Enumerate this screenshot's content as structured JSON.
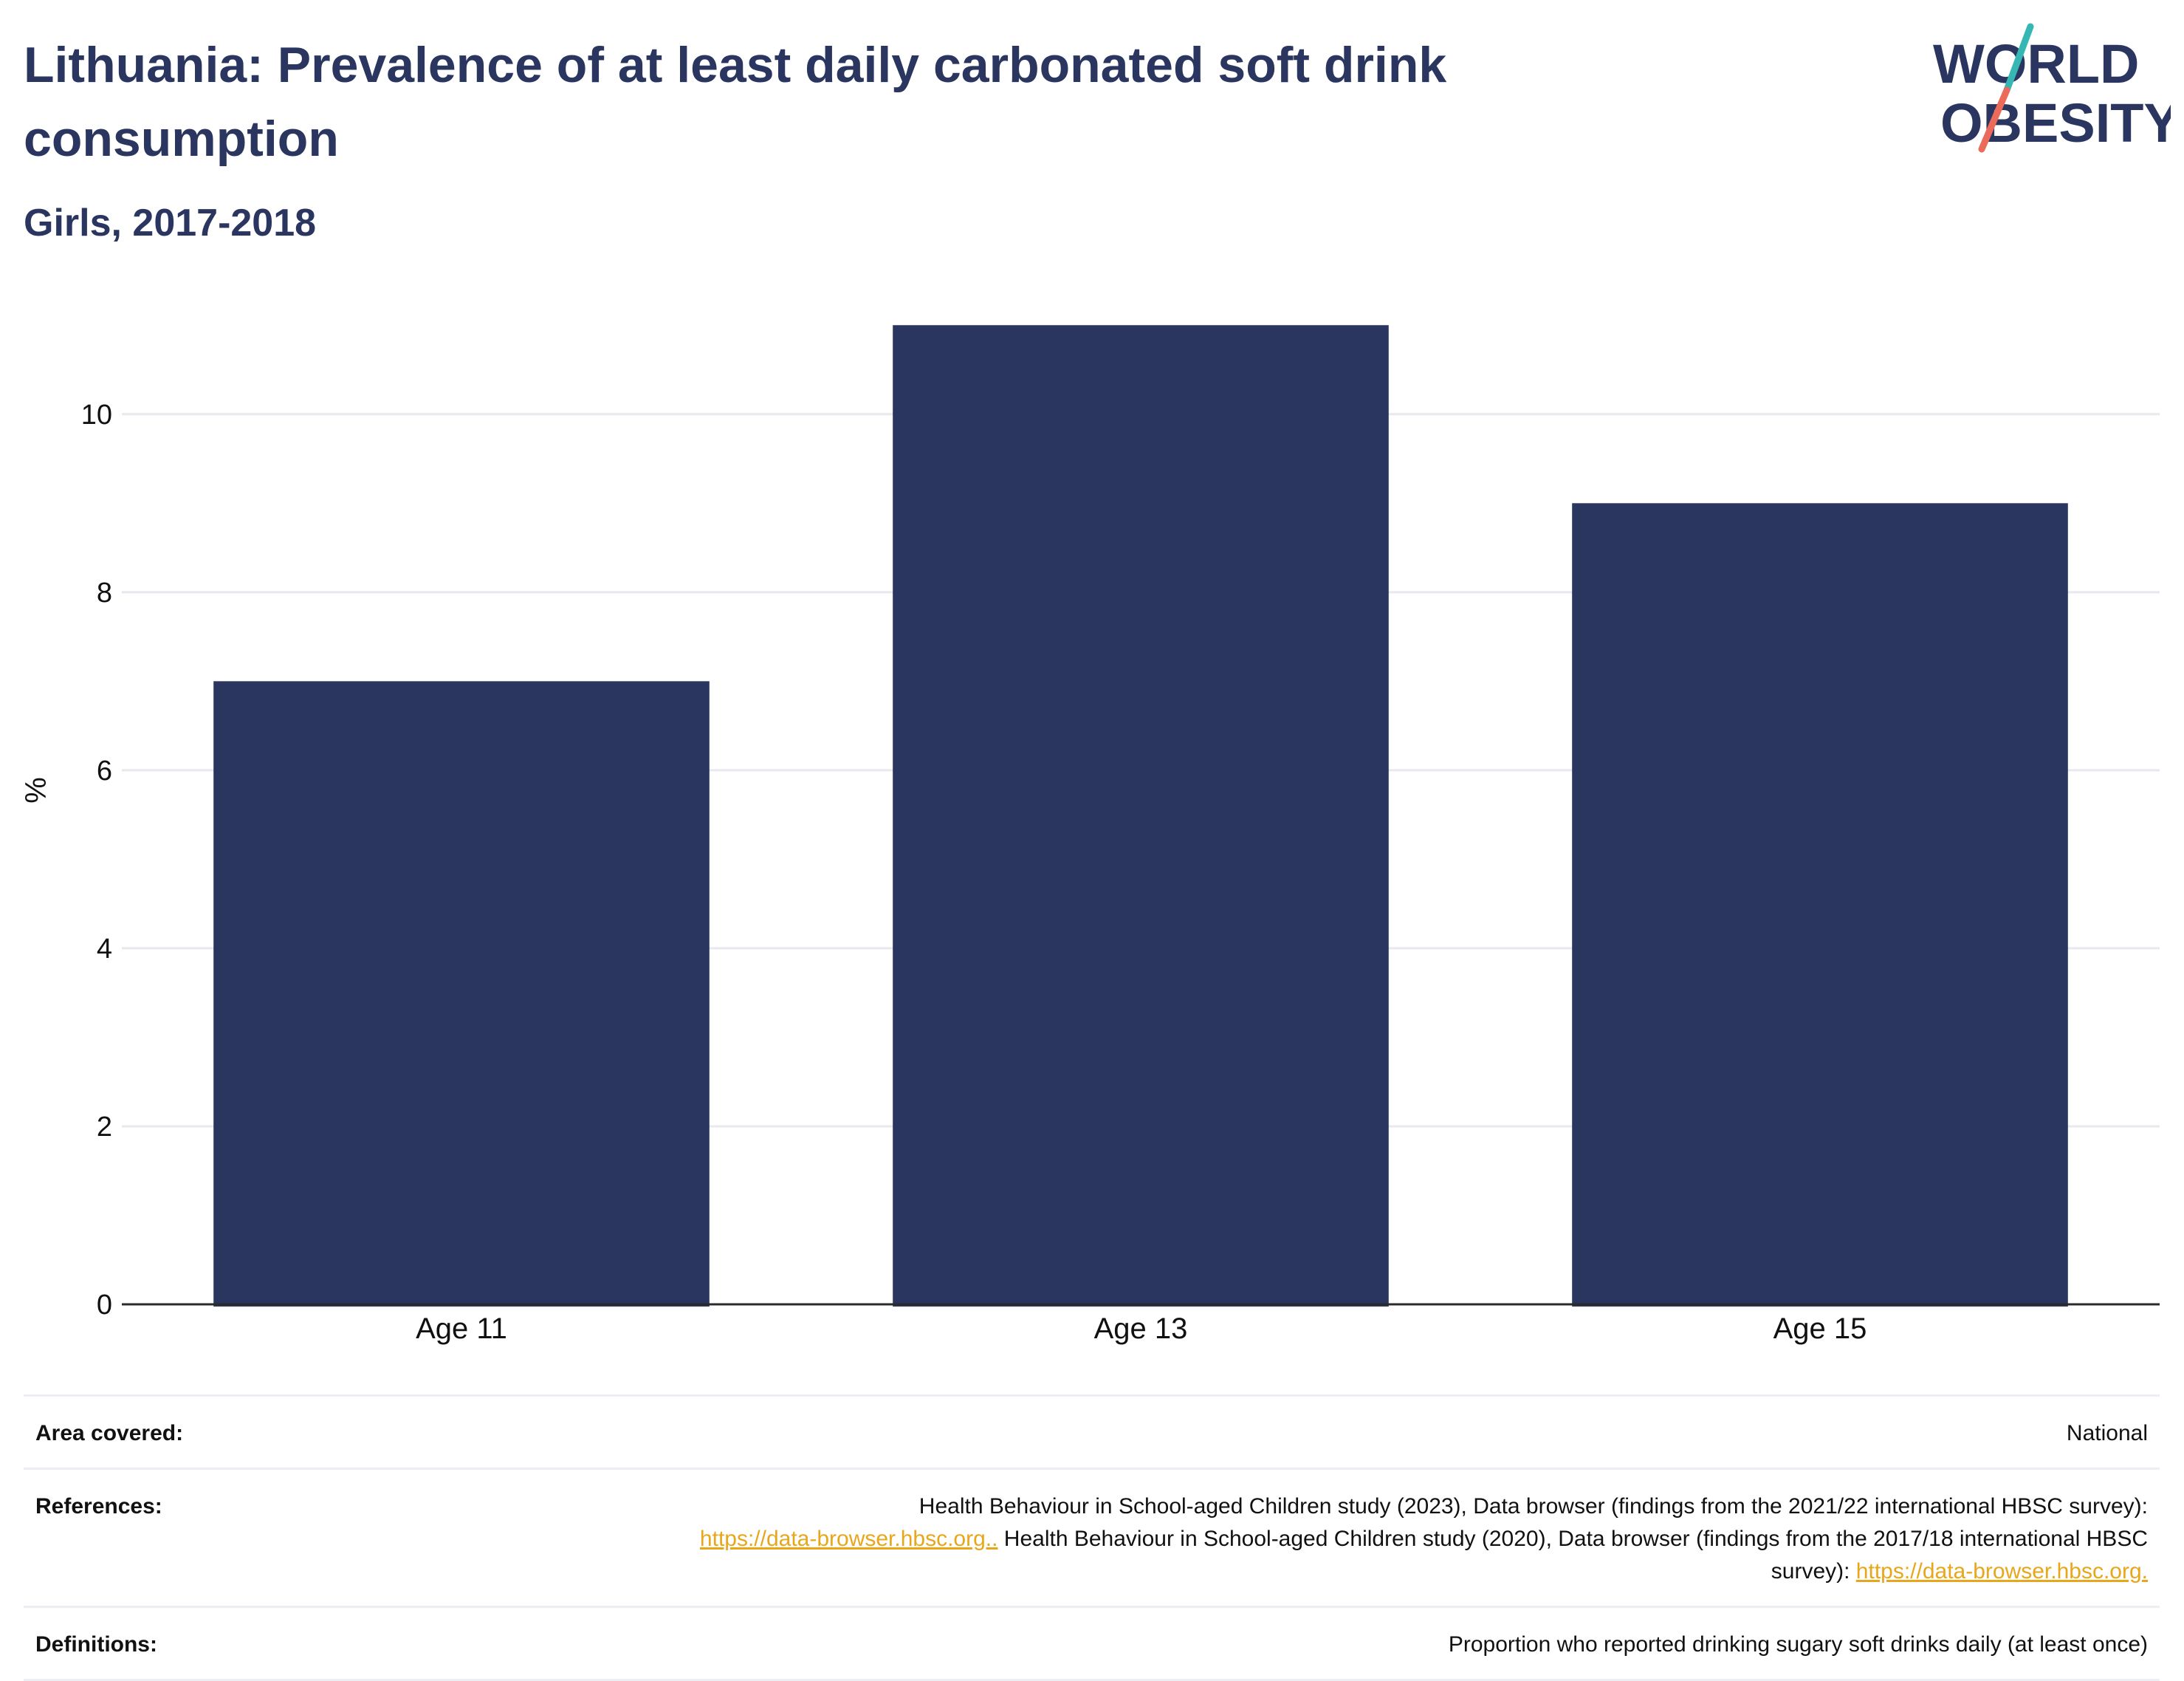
{
  "header": {
    "title": "Lithuania: Prevalence of at least daily carbonated soft drink consumption",
    "subtitle": "Girls, 2017-2018"
  },
  "logo": {
    "line1": "WORLD",
    "line2": "OBESITY",
    "icon": "world-obesity-logo",
    "colors": {
      "text": "#2a365f",
      "teal": "#36b7b4",
      "coral": "#ea6a5b"
    }
  },
  "chart_data": {
    "type": "bar",
    "categories": [
      "Age 11",
      "Age 13",
      "Age 15"
    ],
    "values": [
      7,
      11,
      9
    ],
    "title": "",
    "xlabel": "",
    "ylabel": "%",
    "ylim": [
      0,
      11.5
    ],
    "yticks": [
      0,
      2,
      4,
      6,
      8,
      10
    ],
    "grid": true,
    "bar_color": "#2a365f",
    "grid_color": "#e8e8ee"
  },
  "info": {
    "area": {
      "label": "Area covered:",
      "value": "National"
    },
    "references": {
      "label": "References:",
      "text1": "Health Behaviour in School-aged Children study (2023), Data browser (findings from the 2021/22 international HBSC survey):",
      "link1": "https://data-browser.hbsc.org..",
      "text2": " Health Behaviour in School-aged Children study (2020), Data browser (findings from the 2017/18 international HBSC survey): ",
      "link2": "https://data-browser.hbsc.org.",
      "link_color": "#e8a71b"
    },
    "definitions": {
      "label": "Definitions:",
      "value": "Proportion who reported drinking sugary soft drinks daily (at least once)"
    }
  }
}
